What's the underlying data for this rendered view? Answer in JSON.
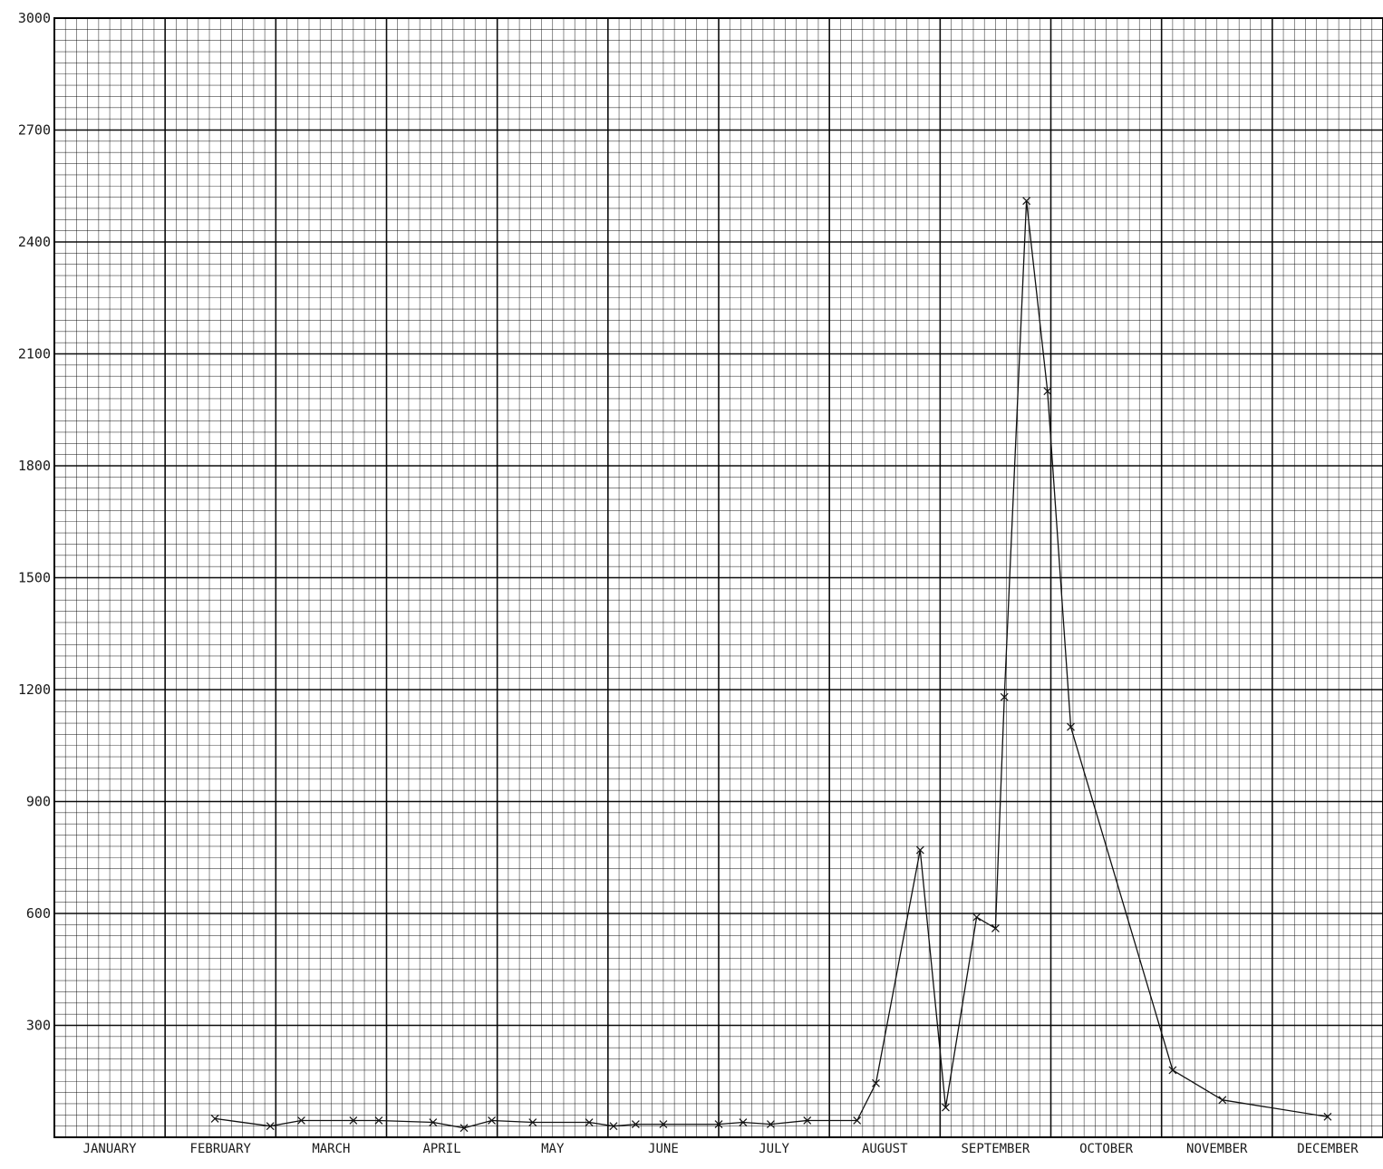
{
  "chart_data": {
    "type": "line",
    "title": "",
    "xlabel": "",
    "ylabel": "",
    "ylim": [
      0,
      3000
    ],
    "grid": true,
    "y_ticks": [
      300,
      600,
      900,
      1200,
      1500,
      1800,
      2100,
      2400,
      2700,
      3000
    ],
    "y_tick_labels": [
      "300",
      "600",
      "900",
      "1200",
      "1500",
      "1800",
      "2100",
      "2400",
      "2700",
      "3000"
    ],
    "x_tick_labels": [
      "JANUARY",
      "FEBRUARY",
      "MARCH",
      "APRIL",
      "MAY",
      "JUNE",
      "JULY",
      "AUGUST",
      "SEPTEMBER",
      "OCTOBER",
      "NOVEMBER",
      "DECEMBER"
    ],
    "x_domain_months": [
      0,
      12
    ],
    "series": [
      {
        "points": [
          {
            "x": 1.45,
            "y": 50
          },
          {
            "x": 1.95,
            "y": 30
          },
          {
            "x": 2.23,
            "y": 45
          },
          {
            "x": 2.7,
            "y": 45
          },
          {
            "x": 2.93,
            "y": 45
          },
          {
            "x": 3.42,
            "y": 40
          },
          {
            "x": 3.7,
            "y": 25
          },
          {
            "x": 3.95,
            "y": 45
          },
          {
            "x": 4.32,
            "y": 40
          },
          {
            "x": 4.83,
            "y": 40
          },
          {
            "x": 5.05,
            "y": 30
          },
          {
            "x": 5.25,
            "y": 35
          },
          {
            "x": 5.5,
            "y": 35
          },
          {
            "x": 6.0,
            "y": 35
          },
          {
            "x": 6.22,
            "y": 40
          },
          {
            "x": 6.47,
            "y": 35
          },
          {
            "x": 6.8,
            "y": 45
          },
          {
            "x": 7.25,
            "y": 45
          },
          {
            "x": 7.42,
            "y": 145
          },
          {
            "x": 7.82,
            "y": 770
          },
          {
            "x": 8.05,
            "y": 80
          },
          {
            "x": 8.33,
            "y": 590
          },
          {
            "x": 8.5,
            "y": 560
          },
          {
            "x": 8.58,
            "y": 1180
          },
          {
            "x": 8.78,
            "y": 2510
          },
          {
            "x": 8.97,
            "y": 2000
          },
          {
            "x": 9.18,
            "y": 1100
          },
          {
            "x": 10.1,
            "y": 180
          },
          {
            "x": 10.55,
            "y": 100
          },
          {
            "x": 11.5,
            "y": 55
          }
        ]
      }
    ]
  }
}
